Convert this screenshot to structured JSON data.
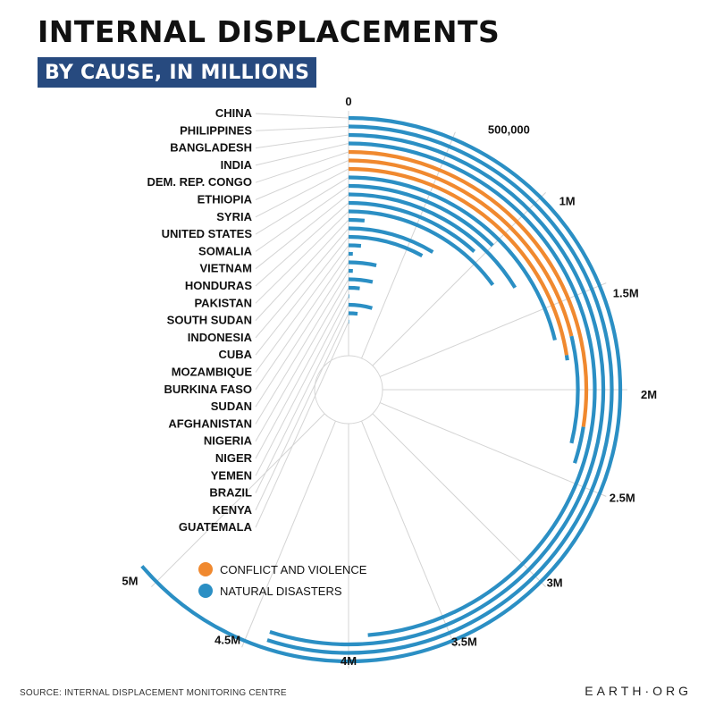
{
  "header": {
    "title": "INTERNAL DISPLACEMENTS",
    "subtitle": "BY CAUSE, IN MILLIONS"
  },
  "footer": {
    "source": "SOURCE: INTERNAL DISPLACEMENT MONITORING CENTRE",
    "brand": "EARTH·ORG"
  },
  "colors": {
    "conflict": "#f0892f",
    "disasters": "#2b8fc4",
    "grid": "#d4d4d4",
    "subtitle_bg": "#274a7f"
  },
  "chart_data": {
    "type": "radial-bar",
    "stacked": true,
    "title": "INTERNAL DISPLACEMENTS",
    "subtitle": "BY CAUSE, IN MILLIONS",
    "axis": {
      "min": 0,
      "max": 5000000,
      "ticks": [
        0,
        500000,
        1000000,
        1500000,
        2000000,
        2500000,
        3000000,
        3500000,
        4000000,
        4500000,
        5000000
      ],
      "tick_labels": [
        "0",
        "500,000",
        "1M",
        "1.5M",
        "2M",
        "2.5M",
        "3M",
        "3.5M",
        "4M",
        "4.5M",
        "5M"
      ]
    },
    "categories": [
      "CHINA",
      "PHILIPPINES",
      "BANGLADESH",
      "INDIA",
      "DEM. REP. CONGO",
      "ETHIOPIA",
      "SYRIA",
      "UNITED STATES",
      "SOMALIA",
      "VIETNAM",
      "HONDURAS",
      "PAKISTAN",
      "SOUTH SUDAN",
      "INDONESIA",
      "CUBA",
      "MOZAMBIQUE",
      "BURKINA FASO",
      "SUDAN",
      "AFGHANISTAN",
      "NIGERIA",
      "NIGER",
      "YEMEN",
      "BRAZIL",
      "KENYA",
      "GUATEMALA"
    ],
    "series": [
      {
        "name": "CONFLICT AND VIOLENCE",
        "color": "#f0892f",
        "values": [
          0,
          0,
          0,
          0,
          2200000,
          1700000,
          1800000,
          0,
          0,
          0,
          0,
          0,
          0,
          0,
          0,
          0,
          0,
          0,
          0,
          0,
          0,
          0,
          0,
          0,
          0
        ]
      },
      {
        "name": "NATURAL DISASTERS",
        "color": "#2b8fc4",
        "values": [
          5100000,
          4400000,
          4400000,
          3900000,
          200000,
          600000,
          30000,
          1700000,
          1000000,
          1300000,
          940000,
          1200000,
          120000,
          700000,
          640000,
          110000,
          40000,
          280000,
          46000,
          280000,
          140000,
          1000,
          359000,
          150000,
          3000
        ]
      }
    ],
    "legend": [
      "CONFLICT AND VIOLENCE",
      "NATURAL DISASTERS"
    ],
    "legend_placement": "bottom-left"
  }
}
